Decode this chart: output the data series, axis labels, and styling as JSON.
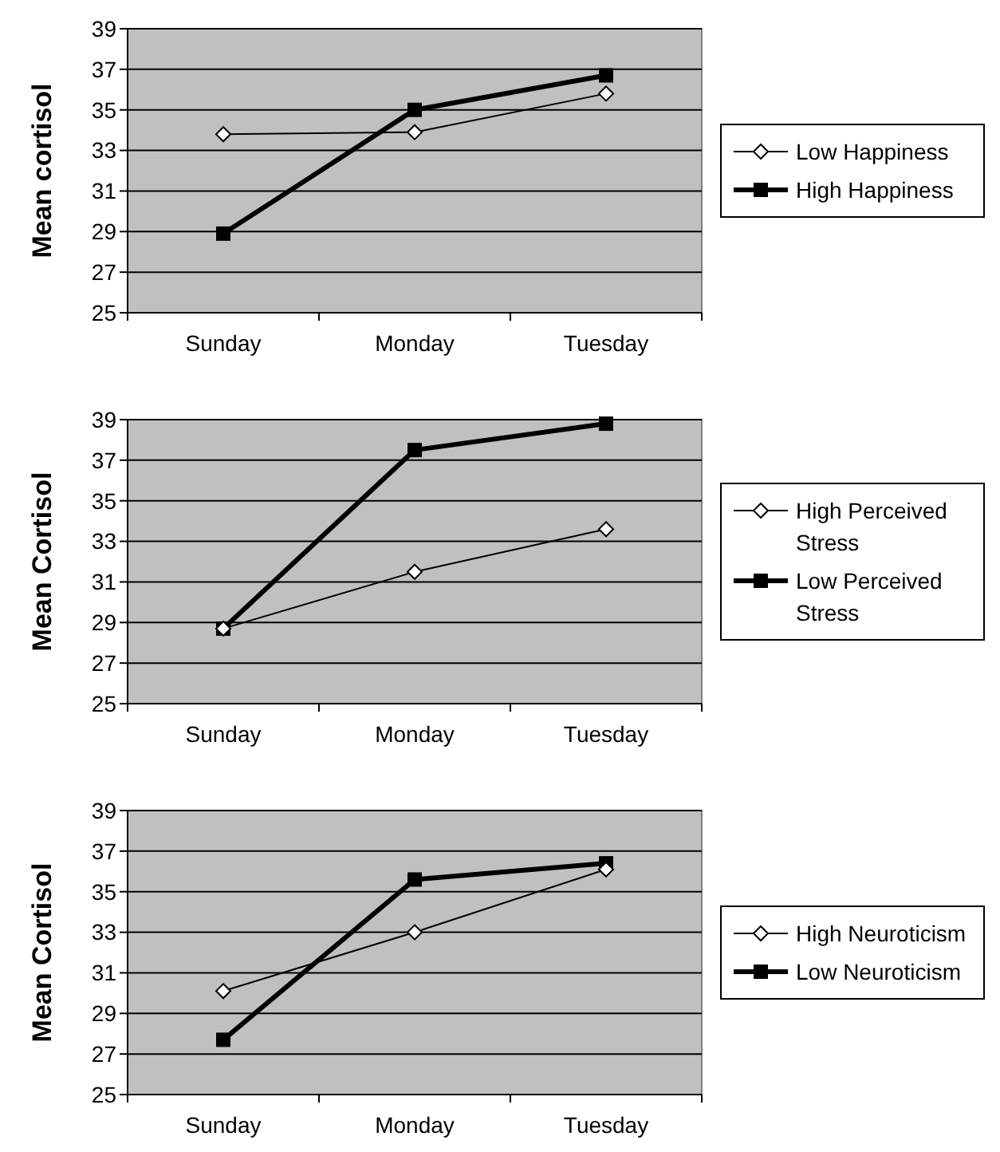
{
  "chart_data": [
    {
      "type": "line",
      "ylabel": "Mean cortisol",
      "categories": [
        "Sunday",
        "Monday",
        "Tuesday"
      ],
      "ylim": [
        25,
        39
      ],
      "yticks": [
        25,
        27,
        29,
        31,
        33,
        35,
        37,
        39
      ],
      "grid": "y",
      "legend": "right",
      "series": [
        {
          "name": "Low Happiness",
          "color": "#000000",
          "marker": "diamond",
          "values": [
            33.8,
            33.9,
            35.8
          ]
        },
        {
          "name": "High Happiness",
          "color": "#000000",
          "marker": "square",
          "values": [
            28.9,
            35.0,
            36.7
          ]
        }
      ]
    },
    {
      "type": "line",
      "ylabel": "Mean Cortisol",
      "categories": [
        "Sunday",
        "Monday",
        "Tuesday"
      ],
      "ylim": [
        25,
        39
      ],
      "yticks": [
        25,
        27,
        29,
        31,
        33,
        35,
        37,
        39
      ],
      "grid": "y",
      "legend": "right",
      "series": [
        {
          "name": "High Perceived Stress",
          "color": "#000000",
          "marker": "diamond",
          "values": [
            28.7,
            31.5,
            33.6
          ]
        },
        {
          "name": "Low Perceived Stress",
          "color": "#000000",
          "marker": "square",
          "values": [
            28.7,
            37.5,
            38.8
          ]
        }
      ]
    },
    {
      "type": "line",
      "ylabel": "Mean Cortisol",
      "categories": [
        "Sunday",
        "Monday",
        "Tuesday"
      ],
      "ylim": [
        25,
        39
      ],
      "yticks": [
        25,
        27,
        29,
        31,
        33,
        35,
        37,
        39
      ],
      "grid": "y",
      "legend": "right",
      "series": [
        {
          "name": "High Neuroticism",
          "color": "#000000",
          "marker": "diamond",
          "values": [
            30.1,
            33.0,
            36.1
          ]
        },
        {
          "name": "Low Neuroticism",
          "color": "#000000",
          "marker": "square",
          "values": [
            27.7,
            35.6,
            36.4
          ]
        }
      ]
    }
  ]
}
